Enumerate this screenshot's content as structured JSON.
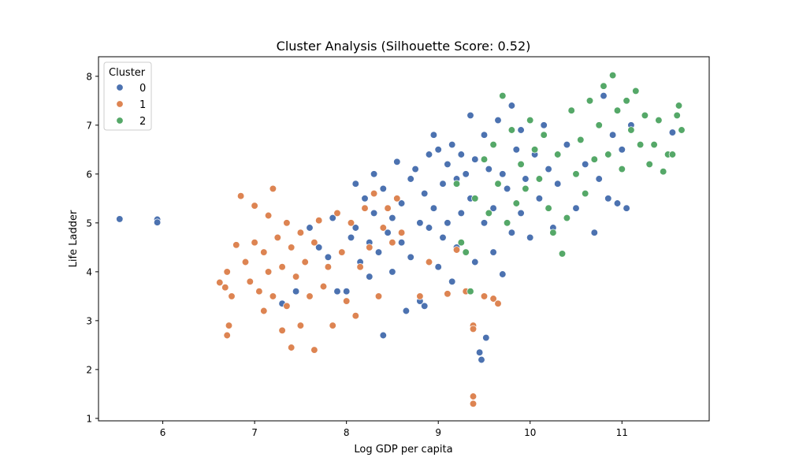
{
  "chart_data": {
    "type": "scatter",
    "title": "Cluster Analysis (Silhouette Score: 0.52)",
    "xlabel": "Log GDP per capita",
    "ylabel": "Life Ladder",
    "xlim": [
      5.3,
      11.95
    ],
    "ylim": [
      0.95,
      8.4
    ],
    "x_ticks": [
      6,
      7,
      8,
      9,
      10,
      11
    ],
    "y_ticks": [
      1,
      2,
      3,
      4,
      5,
      6,
      7,
      8
    ],
    "grid": false,
    "legend": {
      "title": "Cluster",
      "placement": "top-left",
      "entries": [
        "0",
        "1",
        "2"
      ]
    },
    "colors": {
      "0": "#4c72b0",
      "1": "#dd8452",
      "2": "#55a868"
    },
    "series": [
      {
        "name": "0",
        "points": [
          [
            5.53,
            5.08
          ],
          [
            5.94,
            5.07
          ],
          [
            5.94,
            5.01
          ],
          [
            7.3,
            3.35
          ],
          [
            7.45,
            3.6
          ],
          [
            7.6,
            4.9
          ],
          [
            7.7,
            4.5
          ],
          [
            7.8,
            4.3
          ],
          [
            7.85,
            5.1
          ],
          [
            7.9,
            3.6
          ],
          [
            8.0,
            3.6
          ],
          [
            8.05,
            4.7
          ],
          [
            8.1,
            4.9
          ],
          [
            8.1,
            5.8
          ],
          [
            8.15,
            4.2
          ],
          [
            8.2,
            5.5
          ],
          [
            8.25,
            4.6
          ],
          [
            8.25,
            3.9
          ],
          [
            8.3,
            6.0
          ],
          [
            8.3,
            5.2
          ],
          [
            8.35,
            4.4
          ],
          [
            8.4,
            5.7
          ],
          [
            8.4,
            2.7
          ],
          [
            8.45,
            4.8
          ],
          [
            8.5,
            5.1
          ],
          [
            8.5,
            4.0
          ],
          [
            8.55,
            6.25
          ],
          [
            8.6,
            5.4
          ],
          [
            8.6,
            4.6
          ],
          [
            8.65,
            3.2
          ],
          [
            8.7,
            5.9
          ],
          [
            8.7,
            4.3
          ],
          [
            8.75,
            6.1
          ],
          [
            8.8,
            5.0
          ],
          [
            8.8,
            3.4
          ],
          [
            8.85,
            5.6
          ],
          [
            8.85,
            3.3
          ],
          [
            8.9,
            6.4
          ],
          [
            8.9,
            4.9
          ],
          [
            8.95,
            6.8
          ],
          [
            8.95,
            5.3
          ],
          [
            9.0,
            6.5
          ],
          [
            9.0,
            4.1
          ],
          [
            9.05,
            5.8
          ],
          [
            9.05,
            4.7
          ],
          [
            9.1,
            6.2
          ],
          [
            9.1,
            5.0
          ],
          [
            9.15,
            6.6
          ],
          [
            9.15,
            3.8
          ],
          [
            9.2,
            5.9
          ],
          [
            9.2,
            4.5
          ],
          [
            9.25,
            6.4
          ],
          [
            9.25,
            5.2
          ],
          [
            9.3,
            6.0
          ],
          [
            9.3,
            3.6
          ],
          [
            9.35,
            7.2
          ],
          [
            9.35,
            5.5
          ],
          [
            9.4,
            6.3
          ],
          [
            9.4,
            4.2
          ],
          [
            9.45,
            2.35
          ],
          [
            9.47,
            2.2
          ],
          [
            9.5,
            6.8
          ],
          [
            9.5,
            5.0
          ],
          [
            9.52,
            2.65
          ],
          [
            9.55,
            6.1
          ],
          [
            9.6,
            5.3
          ],
          [
            9.6,
            4.4
          ],
          [
            9.65,
            7.1
          ],
          [
            9.7,
            6.0
          ],
          [
            9.7,
            3.95
          ],
          [
            9.75,
            5.7
          ],
          [
            9.8,
            7.4
          ],
          [
            9.8,
            4.8
          ],
          [
            9.85,
            6.5
          ],
          [
            9.9,
            5.2
          ],
          [
            9.9,
            6.9
          ],
          [
            9.95,
            5.9
          ],
          [
            10.0,
            4.7
          ],
          [
            10.05,
            6.4
          ],
          [
            10.1,
            5.5
          ],
          [
            10.15,
            7.0
          ],
          [
            10.2,
            6.1
          ],
          [
            10.25,
            4.9
          ],
          [
            10.3,
            5.8
          ],
          [
            10.4,
            6.6
          ],
          [
            10.5,
            5.3
          ],
          [
            10.6,
            6.2
          ],
          [
            10.7,
            4.8
          ],
          [
            10.75,
            5.9
          ],
          [
            10.8,
            7.6
          ],
          [
            10.85,
            5.5
          ],
          [
            10.9,
            6.8
          ],
          [
            10.95,
            5.4
          ],
          [
            11.0,
            6.5
          ],
          [
            11.05,
            5.3
          ],
          [
            11.1,
            7.0
          ],
          [
            11.55,
            6.85
          ]
        ]
      },
      {
        "name": "1",
        "points": [
          [
            6.62,
            3.78
          ],
          [
            6.68,
            3.68
          ],
          [
            6.7,
            4.0
          ],
          [
            6.7,
            2.7
          ],
          [
            6.72,
            2.9
          ],
          [
            6.75,
            3.5
          ],
          [
            6.8,
            4.55
          ],
          [
            6.85,
            5.55
          ],
          [
            6.9,
            4.2
          ],
          [
            6.95,
            3.8
          ],
          [
            7.0,
            5.35
          ],
          [
            7.0,
            4.6
          ],
          [
            7.05,
            3.6
          ],
          [
            7.1,
            4.4
          ],
          [
            7.1,
            3.2
          ],
          [
            7.15,
            5.15
          ],
          [
            7.15,
            4.0
          ],
          [
            7.2,
            5.7
          ],
          [
            7.2,
            3.5
          ],
          [
            7.25,
            4.7
          ],
          [
            7.3,
            4.1
          ],
          [
            7.3,
            2.8
          ],
          [
            7.35,
            5.0
          ],
          [
            7.35,
            3.3
          ],
          [
            7.4,
            4.5
          ],
          [
            7.4,
            2.45
          ],
          [
            7.45,
            3.9
          ],
          [
            7.5,
            4.8
          ],
          [
            7.5,
            2.9
          ],
          [
            7.55,
            4.2
          ],
          [
            7.6,
            3.5
          ],
          [
            7.65,
            2.4
          ],
          [
            7.65,
            4.6
          ],
          [
            7.7,
            5.05
          ],
          [
            7.75,
            3.7
          ],
          [
            7.8,
            4.1
          ],
          [
            7.85,
            2.9
          ],
          [
            7.9,
            5.2
          ],
          [
            7.95,
            4.4
          ],
          [
            8.0,
            3.4
          ],
          [
            8.05,
            5.0
          ],
          [
            8.1,
            3.1
          ],
          [
            8.15,
            4.1
          ],
          [
            8.2,
            5.3
          ],
          [
            8.25,
            4.5
          ],
          [
            8.3,
            5.6
          ],
          [
            8.35,
            3.5
          ],
          [
            8.4,
            4.9
          ],
          [
            8.45,
            5.3
          ],
          [
            8.5,
            4.6
          ],
          [
            8.55,
            5.5
          ],
          [
            8.6,
            4.8
          ],
          [
            8.8,
            3.5
          ],
          [
            8.9,
            4.2
          ],
          [
            9.1,
            3.55
          ],
          [
            9.2,
            4.45
          ],
          [
            9.3,
            3.6
          ],
          [
            9.38,
            2.9
          ],
          [
            9.38,
            2.83
          ],
          [
            9.38,
            1.45
          ],
          [
            9.38,
            1.3
          ],
          [
            9.5,
            3.5
          ],
          [
            9.6,
            3.45
          ],
          [
            9.65,
            3.35
          ]
        ]
      },
      {
        "name": "2",
        "points": [
          [
            9.2,
            5.8
          ],
          [
            9.25,
            4.6
          ],
          [
            9.3,
            4.4
          ],
          [
            9.35,
            3.6
          ],
          [
            9.4,
            5.5
          ],
          [
            9.5,
            6.3
          ],
          [
            9.55,
            5.2
          ],
          [
            9.6,
            6.6
          ],
          [
            9.65,
            5.8
          ],
          [
            9.7,
            7.6
          ],
          [
            9.75,
            5.0
          ],
          [
            9.8,
            6.9
          ],
          [
            9.85,
            5.4
          ],
          [
            9.9,
            6.2
          ],
          [
            9.95,
            5.7
          ],
          [
            10.0,
            7.1
          ],
          [
            10.05,
            6.5
          ],
          [
            10.1,
            5.9
          ],
          [
            10.15,
            6.8
          ],
          [
            10.2,
            5.3
          ],
          [
            10.25,
            4.8
          ],
          [
            10.3,
            6.4
          ],
          [
            10.35,
            4.37
          ],
          [
            10.4,
            5.1
          ],
          [
            10.45,
            7.3
          ],
          [
            10.5,
            6.0
          ],
          [
            10.55,
            6.7
          ],
          [
            10.6,
            5.6
          ],
          [
            10.65,
            7.5
          ],
          [
            10.7,
            6.3
          ],
          [
            10.75,
            7.0
          ],
          [
            10.8,
            7.8
          ],
          [
            10.85,
            6.4
          ],
          [
            10.9,
            8.02
          ],
          [
            10.95,
            7.3
          ],
          [
            11.0,
            6.1
          ],
          [
            11.05,
            7.5
          ],
          [
            11.1,
            6.9
          ],
          [
            11.15,
            7.7
          ],
          [
            11.2,
            6.6
          ],
          [
            11.25,
            7.2
          ],
          [
            11.3,
            6.2
          ],
          [
            11.35,
            6.6
          ],
          [
            11.4,
            7.1
          ],
          [
            11.45,
            6.05
          ],
          [
            11.5,
            6.4
          ],
          [
            11.55,
            6.4
          ],
          [
            11.6,
            7.2
          ],
          [
            11.62,
            7.4
          ],
          [
            11.65,
            6.9
          ]
        ]
      }
    ]
  }
}
